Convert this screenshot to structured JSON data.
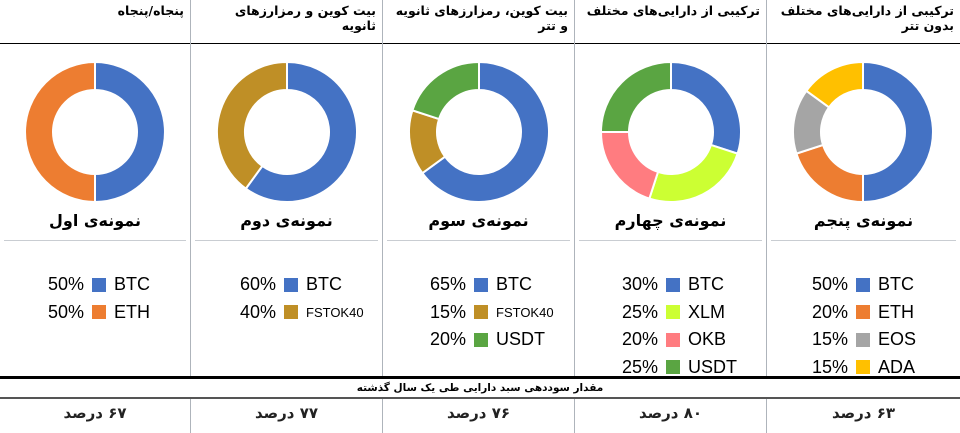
{
  "colors": {
    "BTC": "#4472c4",
    "ETH": "#ed7d31",
    "FSTOK40": "#bf8f26",
    "USDT": "#5aa542",
    "XLM": "#ccff33",
    "OKB": "#ff7c80",
    "EOS": "#a5a5a5",
    "ADA": "#ffc000"
  },
  "chart_data": [
    {
      "type": "pie",
      "title": "پنجاه/پنجاه",
      "label": "نمونه‌ی اول",
      "slices": [
        {
          "name": "BTC",
          "value": 50,
          "pct": "50%"
        },
        {
          "name": "ETH",
          "value": 50,
          "pct": "50%"
        }
      ],
      "annual_return": "۶۷ درصد"
    },
    {
      "type": "pie",
      "title": "بیت کوین و رمزارزهای ثانویه",
      "label": "نمونه‌ی دوم",
      "slices": [
        {
          "name": "BTC",
          "value": 60,
          "pct": "60%"
        },
        {
          "name": "FSTOK40",
          "value": 40,
          "pct": "40%"
        }
      ],
      "annual_return": "۷۷ درصد"
    },
    {
      "type": "pie",
      "title": "بیت کوین، رمزارزهای ثانویه و تتر",
      "label": "نمونه‌ی سوم",
      "slices": [
        {
          "name": "BTC",
          "value": 65,
          "pct": "65%"
        },
        {
          "name": "FSTOK40",
          "value": 15,
          "pct": "15%"
        },
        {
          "name": "USDT",
          "value": 20,
          "pct": "20%"
        }
      ],
      "annual_return": "۷۶ درصد"
    },
    {
      "type": "pie",
      "title": "ترکیبی از دارایی‌های مختلف",
      "label": "نمونه‌ی چهارم",
      "slices": [
        {
          "name": "BTC",
          "value": 30,
          "pct": "30%"
        },
        {
          "name": "XLM",
          "value": 25,
          "pct": "25%"
        },
        {
          "name": "OKB",
          "value": 20,
          "pct": "20%"
        },
        {
          "name": "USDT",
          "value": 25,
          "pct": "25%"
        }
      ],
      "annual_return": "۸۰ درصد"
    },
    {
      "type": "pie",
      "title": "ترکیبی از دارایی‌های مختلف بدون تتر",
      "label": "نمونه‌ی پنجم",
      "slices": [
        {
          "name": "BTC",
          "value": 50,
          "pct": "50%"
        },
        {
          "name": "ETH",
          "value": 20,
          "pct": "20%"
        },
        {
          "name": "EOS",
          "value": 15,
          "pct": "15%"
        },
        {
          "name": "ADA",
          "value": 15,
          "pct": "15%"
        }
      ],
      "annual_return": "۶۳ درصد"
    }
  ],
  "footer": {
    "caption": "مقدار سوددهی سبد دارایی طی یک سال گذشته"
  }
}
